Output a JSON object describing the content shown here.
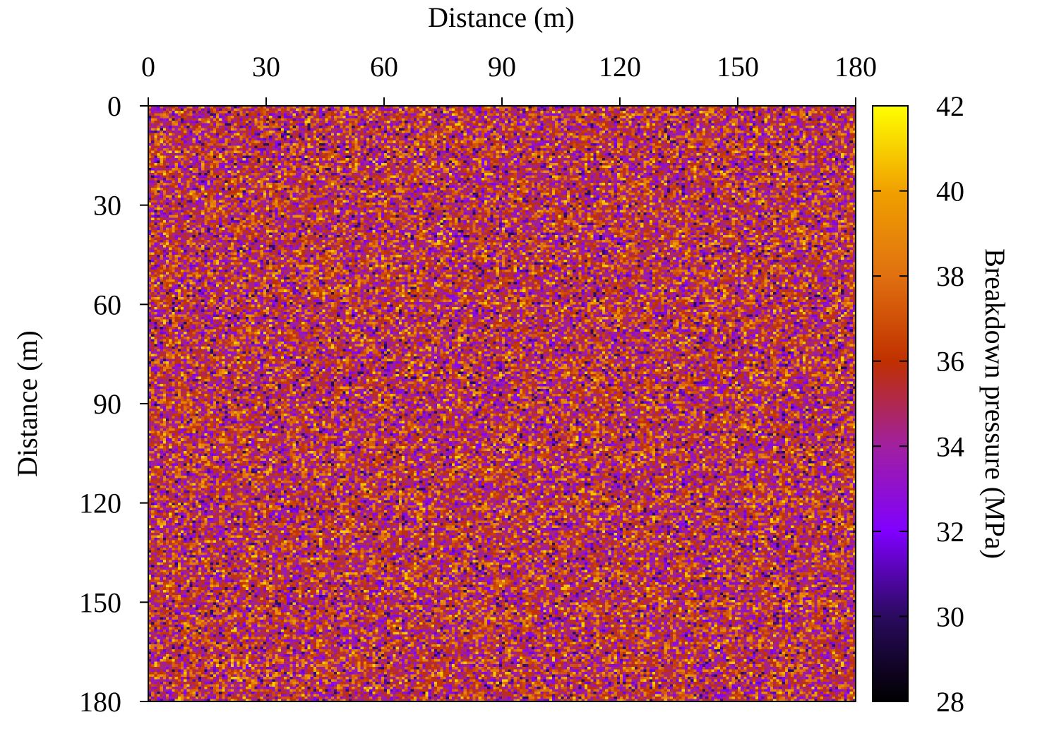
{
  "chart_data": {
    "type": "heatmap",
    "title": "",
    "xlabel": "Distance (m)",
    "ylabel": "Distance (m)",
    "xlim": [
      0,
      180
    ],
    "ylim": [
      0,
      180
    ],
    "x_axis_position": "top",
    "y_axis_direction": "down",
    "x_ticks": [
      "0",
      "30",
      "60",
      "90",
      "120",
      "150",
      "180"
    ],
    "y_ticks": [
      "0",
      "30",
      "60",
      "90",
      "120",
      "150",
      "180"
    ],
    "colorbar": {
      "label": "Breakdown pressure (MPa)",
      "range": [
        28,
        42
      ],
      "ticks": [
        "28",
        "30",
        "32",
        "34",
        "36",
        "38",
        "40",
        "42"
      ],
      "colors": [
        "#000000",
        "#2a0a5e",
        "#8000ff",
        "#a020a0",
        "#c03000",
        "#e07010",
        "#f0a000",
        "#ffff00"
      ]
    },
    "field": {
      "description_values": "random spatial field",
      "value_range": [
        30,
        41
      ],
      "mean": 35.5,
      "std": 2.6,
      "grid": [
        240,
        240
      ]
    }
  }
}
